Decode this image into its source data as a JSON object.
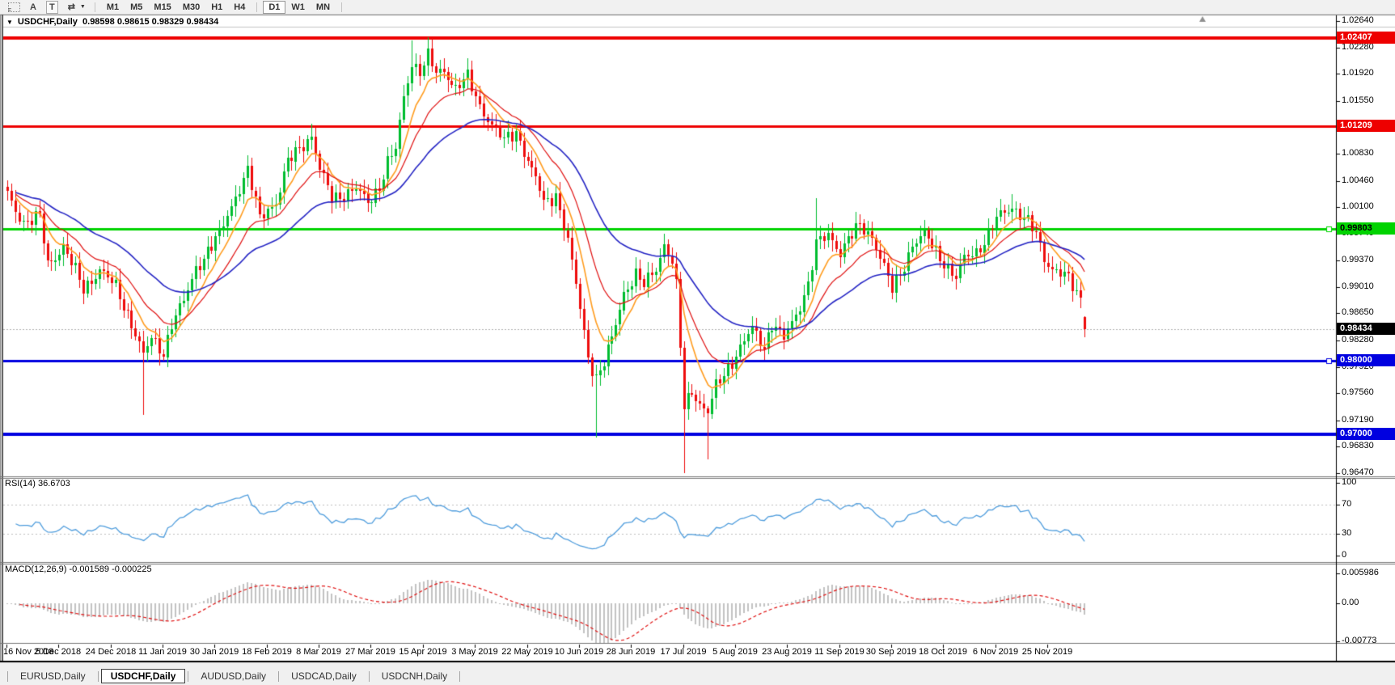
{
  "toolbar": {
    "icons": [
      {
        "name": "grid-f-icon",
        "style": "grid",
        "letter": "F"
      },
      {
        "name": "arrow-a-icon",
        "glyph": "A"
      },
      {
        "name": "text-tool-icon",
        "glyph": "T",
        "style": "boxed"
      },
      {
        "name": "indicators-arrows-icon",
        "glyph": "⇄"
      },
      {
        "name": "dropdown-caret-icon",
        "glyph": "▼",
        "style": "caret"
      }
    ],
    "timeframes": [
      "M1",
      "M5",
      "M15",
      "M30",
      "H1",
      "H4",
      "D1",
      "W1",
      "MN"
    ],
    "active_timeframe": "D1"
  },
  "chart_header": {
    "collapse_glyph": "▼",
    "symbol_title": "USDCHF,Daily",
    "ohlc_text": "0.98598 0.98615 0.98329 0.98434"
  },
  "chart_data": {
    "type": "candlestick",
    "symbol": "USDCHF",
    "timeframe": "Daily",
    "ohlc": {
      "open": 0.98598,
      "high": 0.98615,
      "low": 0.98329,
      "close": 0.98434
    },
    "y_ticks": [
      "1.02640",
      "1.02280",
      "1.01920",
      "1.01550",
      "1.00830",
      "1.00460",
      "1.00100",
      "0.99740",
      "0.99370",
      "0.99010",
      "0.98650",
      "0.98280",
      "0.97920",
      "0.97560",
      "0.97190",
      "0.96830",
      "0.96470"
    ],
    "x_dates": [
      "16 Nov 2018",
      "5 Dec 2018",
      "24 Dec 2018",
      "11 Jan 2019",
      "30 Jan 2019",
      "18 Feb 2019",
      "8 Mar 2019",
      "27 Mar 2019",
      "15 Apr 2019",
      "3 May 2019",
      "22 May 2019",
      "10 Jun 2019",
      "28 Jun 2019",
      "17 Jul 2019",
      "5 Aug 2019",
      "23 Aug 2019",
      "11 Sep 2019",
      "30 Sep 2019",
      "18 Oct 2019",
      "6 Nov 2019",
      "25 Nov 2019"
    ],
    "horizontal_lines": [
      {
        "price": 1.02407,
        "label": "1.02407",
        "color": "#ee0000",
        "text_color": "#ffffff",
        "width": 4,
        "handle": false
      },
      {
        "price": 1.01209,
        "label": "1.01209",
        "color": "#ee0000",
        "text_color": "#ffffff",
        "width": 3,
        "handle": false
      },
      {
        "price": 0.99803,
        "label": "0.99803",
        "color": "#00d300",
        "text_color": "#000000",
        "width": 3,
        "handle": true
      },
      {
        "price": 0.98,
        "label": "0.98000",
        "color": "#0000e0",
        "text_color": "#ffffff",
        "width": 3,
        "handle": true
      },
      {
        "price": 0.97,
        "label": "0.97000",
        "color": "#0000e0",
        "text_color": "#ffffff",
        "width": 4,
        "handle": false
      }
    ],
    "current_price": {
      "value": 0.98434,
      "label": "0.98434"
    },
    "price_axis_range": {
      "top_price": 1.0264,
      "bottom_price": 0.9647
    },
    "candles": {
      "count": 270,
      "close_path": [
        [
          0,
          1.0025
        ],
        [
          2,
          1.0005
        ],
        [
          4,
          0.9992
        ],
        [
          8,
          0.9996
        ],
        [
          10,
          0.993
        ],
        [
          14,
          0.9958
        ],
        [
          19,
          0.9897
        ],
        [
          23,
          0.9926
        ],
        [
          27,
          0.99
        ],
        [
          31,
          0.9853
        ],
        [
          34,
          0.9807
        ],
        [
          36,
          0.983
        ],
        [
          39,
          0.9812
        ],
        [
          41,
          0.9851
        ],
        [
          44,
          0.988
        ],
        [
          47,
          0.9928
        ],
        [
          50,
          0.995
        ],
        [
          53,
          0.9972
        ],
        [
          57,
          1.0027
        ],
        [
          60,
          1.0058
        ],
        [
          63,
          0.9995
        ],
        [
          65,
          1.001
        ],
        [
          67,
          1.0016
        ],
        [
          70,
          1.007
        ],
        [
          73,
          1.0092
        ],
        [
          76,
          1.0108
        ],
        [
          78,
          1.006
        ],
        [
          81,
          1.0023
        ],
        [
          84,
          1.0028
        ],
        [
          87,
          1.0034
        ],
        [
          90,
          1.0016
        ],
        [
          93,
          1.004
        ],
        [
          95,
          1.007
        ],
        [
          97,
          1.0088
        ],
        [
          99,
          1.016
        ],
        [
          101,
          1.0208
        ],
        [
          103,
          1.0196
        ],
        [
          105,
          1.0214
        ],
        [
          107,
          1.0192
        ],
        [
          109,
          1.0198
        ],
        [
          112,
          1.0172
        ],
        [
          115,
          1.0186
        ],
        [
          118,
          1.015
        ],
        [
          121,
          1.0122
        ],
        [
          124,
          1.01
        ],
        [
          127,
          1.0115
        ],
        [
          130,
          1.0072
        ],
        [
          133,
          1.0034
        ],
        [
          134,
          1.0016
        ],
        [
          137,
          1.0028
        ],
        [
          140,
          0.9962
        ],
        [
          143,
          0.9874
        ],
        [
          145,
          0.9808
        ],
        [
          147,
          0.9776
        ],
        [
          149,
          0.9796
        ],
        [
          151,
          0.983
        ],
        [
          154,
          0.9895
        ],
        [
          157,
          0.9917
        ],
        [
          159,
          0.9902
        ],
        [
          162,
          0.9928
        ],
        [
          164,
          0.996
        ],
        [
          166,
          0.9935
        ],
        [
          167,
          0.99
        ],
        [
          169,
          0.9736
        ],
        [
          171,
          0.9762
        ],
        [
          173,
          0.9742
        ],
        [
          175,
          0.9728
        ],
        [
          177,
          0.9764
        ],
        [
          180,
          0.9792
        ],
        [
          183,
          0.9818
        ],
        [
          186,
          0.9842
        ],
        [
          189,
          0.982
        ],
        [
          191,
          0.9852
        ],
        [
          194,
          0.983
        ],
        [
          197,
          0.9863
        ],
        [
          200,
          0.9906
        ],
        [
          202,
          0.9958
        ],
        [
          205,
          0.9972
        ],
        [
          208,
          0.995
        ],
        [
          210,
          0.9966
        ],
        [
          213,
          0.9983
        ],
        [
          216,
          0.9972
        ],
        [
          219,
          0.9928
        ],
        [
          221,
          0.9896
        ],
        [
          223,
          0.9918
        ],
        [
          226,
          0.996
        ],
        [
          229,
          0.9972
        ],
        [
          232,
          0.995
        ],
        [
          235,
          0.9928
        ],
        [
          237,
          0.9912
        ],
        [
          239,
          0.9939
        ],
        [
          242,
          0.995
        ],
        [
          245,
          0.9972
        ],
        [
          247,
          0.9994
        ],
        [
          249,
          1.0002
        ],
        [
          251,
          1.0012
        ],
        [
          254,
          0.9996
        ],
        [
          257,
          0.9972
        ],
        [
          259,
          0.994
        ],
        [
          261,
          0.9928
        ],
        [
          264,
          0.9917
        ],
        [
          266,
          0.9901
        ],
        [
          268,
          0.9886
        ],
        [
          269,
          0.98434
        ]
      ],
      "spikes": [
        {
          "i": 34,
          "low": 0.9726
        },
        {
          "i": 76,
          "high": 1.0124
        },
        {
          "i": 101,
          "high": 1.0238
        },
        {
          "i": 105,
          "high": 1.0242
        },
        {
          "i": 147,
          "low": 0.9695
        },
        {
          "i": 169,
          "low": 0.9647
        },
        {
          "i": 175,
          "low": 0.9666
        },
        {
          "i": 202,
          "high": 1.0022
        },
        {
          "i": 251,
          "high": 1.0028
        }
      ],
      "last": {
        "o": 0.98598,
        "h": 0.98615,
        "l": 0.98329,
        "c": 0.98434
      }
    },
    "moving_averages": [
      {
        "name": "fast-ma",
        "period": 8,
        "color": "#ff9c1e",
        "width": 1.6
      },
      {
        "name": "medium-ma",
        "period": 17,
        "color": "#e01010",
        "width": 1.2
      },
      {
        "name": "slow-ma",
        "period": 40,
        "color": "#2424c4",
        "width": 1.6
      }
    ],
    "colors": {
      "up": "#00bd2f",
      "down": "#ee0c0c",
      "background": "#ffffff",
      "current_price_line": "#b0b0b0",
      "axis_text": "#000000"
    }
  },
  "rsi": {
    "name": "RSI(14)",
    "value": "36.6703",
    "period": 14,
    "levels": [
      70,
      30
    ],
    "axis_ticks": [
      100,
      70,
      30,
      0
    ],
    "line_color": "#4f9ddd",
    "level_color": "#bdbdbd"
  },
  "macd": {
    "name": "MACD(12,26,9)",
    "values": "-0.001589 -0.000225",
    "fast": 12,
    "slow": 26,
    "signal": 9,
    "axis_ticks": [
      {
        "label": "0.005986",
        "value": 0.005986
      },
      {
        "label": "0.00",
        "value": 0
      },
      {
        "label": "-0.00773",
        "value": -0.00773
      }
    ],
    "histogram_color": "#c2c2c2",
    "signal_color": "#e01010"
  },
  "bottom_tabs": {
    "items": [
      "EURUSD,Daily",
      "USDCHF,Daily",
      "AUDUSD,Daily",
      "USDCAD,Daily",
      "USDCNH,Daily"
    ],
    "active_index": 1
  }
}
